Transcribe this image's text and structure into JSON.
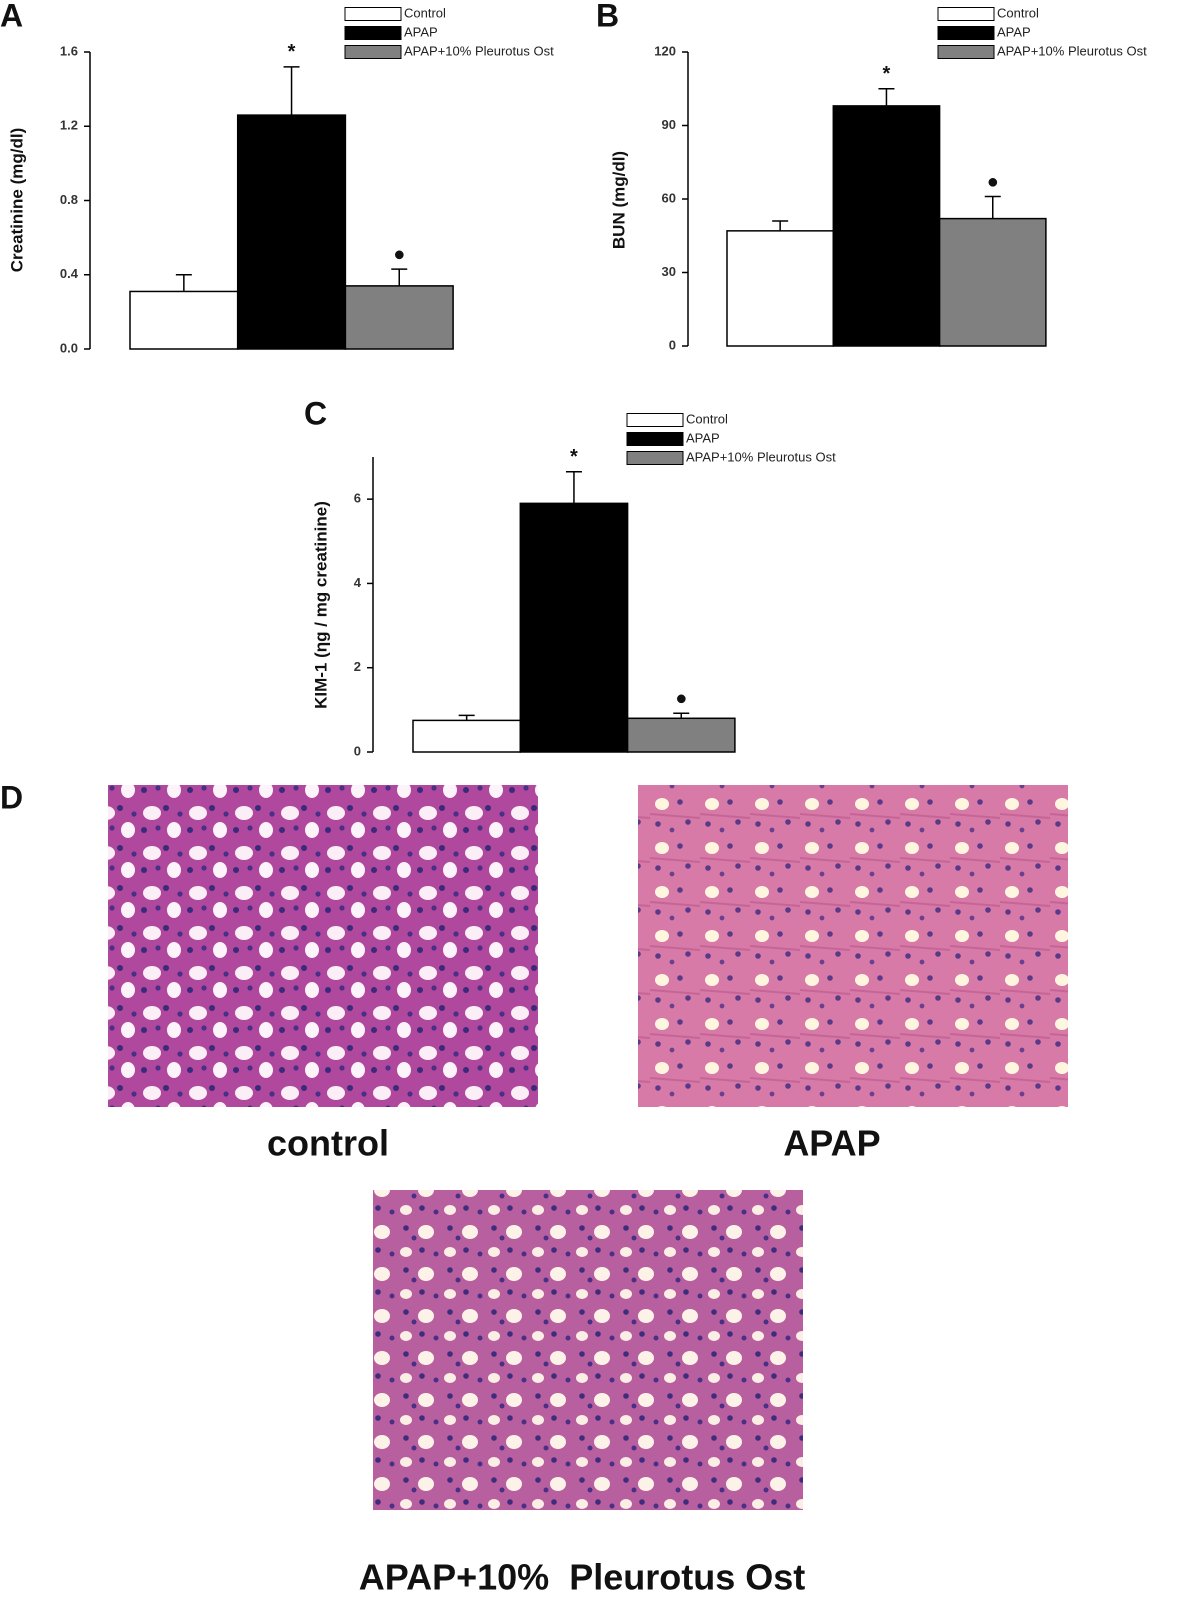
{
  "chart_data": [
    {
      "type": "bar",
      "panel_label": "A",
      "ylabel": "Creatinine (mg/dl)",
      "ylim": [
        0,
        1.6
      ],
      "yticks": [
        {
          "value": 0,
          "label": "0.0"
        },
        0.4,
        0.8,
        1.2,
        1.6
      ],
      "grid": false,
      "series": [
        {
          "name": "Control",
          "color": "#ffffff",
          "values": [
            0.31
          ],
          "errors": [
            0.09
          ]
        },
        {
          "name": "APAP",
          "color": "#000000",
          "values": [
            1.26
          ],
          "errors": [
            0.26
          ],
          "annotation": "*"
        },
        {
          "name": "APAP+10% Pleurotus Ost",
          "color": "#808080",
          "values": [
            0.34
          ],
          "errors": [
            0.09
          ],
          "annotation": "●"
        }
      ]
    },
    {
      "type": "bar",
      "panel_label": "B",
      "ylabel": "BUN (mg/dl)",
      "ylim": [
        0,
        120
      ],
      "yticks": [
        0,
        30,
        60,
        90,
        120
      ],
      "grid": false,
      "series": [
        {
          "name": "Control",
          "color": "#ffffff",
          "values": [
            47
          ],
          "errors": [
            4
          ]
        },
        {
          "name": "APAP",
          "color": "#000000",
          "values": [
            98
          ],
          "errors": [
            7
          ],
          "annotation": "*"
        },
        {
          "name": "APAP+10% Pleurotus Ost",
          "color": "#808080",
          "values": [
            52
          ],
          "errors": [
            9
          ],
          "annotation": "●"
        }
      ]
    },
    {
      "type": "bar",
      "panel_label": "C",
      "ylabel": "KIM-1 (ηg / mg creatinine)",
      "ylim": [
        0,
        7
      ],
      "yticks": [
        0,
        2,
        4,
        6
      ],
      "grid": false,
      "series": [
        {
          "name": "Control",
          "color": "#ffffff",
          "values": [
            0.75
          ],
          "errors": [
            0.12
          ]
        },
        {
          "name": "APAP",
          "color": "#000000",
          "values": [
            5.9
          ],
          "errors": [
            0.75
          ],
          "annotation": "*"
        },
        {
          "name": "APAP+10% Pleurotus Ost",
          "color": "#808080",
          "values": [
            0.8
          ],
          "errors": [
            0.12
          ],
          "annotation": "●"
        }
      ]
    }
  ],
  "histology": {
    "panel_label": "D",
    "images": [
      {
        "caption": "control"
      },
      {
        "caption": "APAP"
      },
      {
        "caption": "APAP+10%  Pleurotus Ost"
      }
    ]
  }
}
